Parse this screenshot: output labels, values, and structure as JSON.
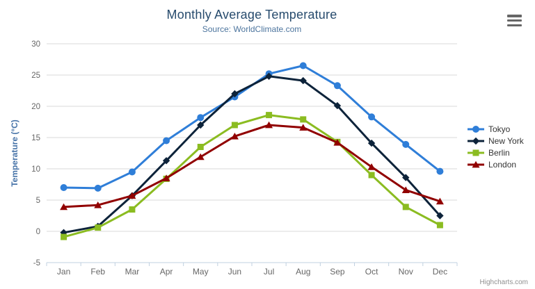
{
  "chart": {
    "title": "Monthly Average Temperature",
    "subtitle": "Source: WorldClimate.com",
    "credits_label": "Highcharts.com"
  },
  "chart_data": {
    "type": "line",
    "title": "Monthly Average Temperature",
    "subtitle": "Source: WorldClimate.com",
    "xlabel": "",
    "ylabel": "Temperature (°C)",
    "ylim": [
      -5,
      30
    ],
    "ytick_interval": 5,
    "grid": true,
    "legend_position": "right",
    "categories": [
      "Jan",
      "Feb",
      "Mar",
      "Apr",
      "May",
      "Jun",
      "Jul",
      "Aug",
      "Sep",
      "Oct",
      "Nov",
      "Dec"
    ],
    "series": [
      {
        "name": "Tokyo",
        "color": "#2f7ed8",
        "marker": "circle",
        "values": [
          7.0,
          6.9,
          9.5,
          14.5,
          18.2,
          21.5,
          25.2,
          26.5,
          23.3,
          18.3,
          13.9,
          9.6
        ]
      },
      {
        "name": "New York",
        "color": "#0d233a",
        "marker": "diamond",
        "values": [
          -0.2,
          0.8,
          5.7,
          11.3,
          17.0,
          22.0,
          24.8,
          24.1,
          20.1,
          14.1,
          8.6,
          2.5
        ]
      },
      {
        "name": "Berlin",
        "color": "#8bbc21",
        "marker": "square",
        "values": [
          -0.9,
          0.6,
          3.5,
          8.4,
          13.5,
          17.0,
          18.6,
          17.9,
          14.3,
          9.0,
          3.9,
          1.0
        ]
      },
      {
        "name": "London",
        "color": "#910000",
        "marker": "triangle",
        "values": [
          3.9,
          4.2,
          5.7,
          8.5,
          11.9,
          15.2,
          17.0,
          16.6,
          14.2,
          10.3,
          6.6,
          4.8
        ]
      }
    ]
  },
  "theme": {
    "title_color": "#274b6d",
    "subtitle_color": "#4d759e",
    "axis_title_color": "#4572a7",
    "tick_label_color": "#666666",
    "grid_color": "#d8d8d8",
    "axis_line_color": "#c0d0e0",
    "legend_text_color": "#333333",
    "credits_color": "#909090",
    "menu_icon_color": "#666666"
  }
}
